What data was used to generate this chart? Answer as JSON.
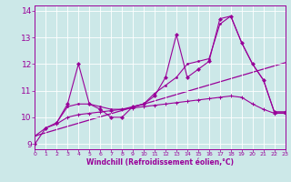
{
  "xlabel": "Windchill (Refroidissement éolien,°C)",
  "bg_color": "#cce8e8",
  "grid_color": "#b0d0d0",
  "line_color": "#990099",
  "xlim": [
    0,
    23
  ],
  "ylim": [
    8.8,
    14.2
  ],
  "yticks": [
    9,
    10,
    11,
    12,
    13,
    14
  ],
  "xticks": [
    0,
    1,
    2,
    3,
    4,
    5,
    6,
    7,
    8,
    9,
    10,
    11,
    12,
    13,
    14,
    15,
    16,
    17,
    18,
    19,
    20,
    21,
    22,
    23
  ],
  "curve1_x": [
    0,
    1,
    2,
    3,
    4,
    5,
    6,
    7,
    8,
    9,
    10,
    11,
    12,
    13,
    14,
    15,
    16,
    17,
    18,
    19,
    20,
    21,
    22,
    23
  ],
  "curve1_y": [
    9.0,
    9.6,
    9.8,
    10.5,
    12.0,
    10.5,
    10.3,
    10.0,
    10.0,
    10.4,
    10.5,
    10.8,
    11.5,
    13.1,
    11.5,
    11.8,
    12.1,
    13.7,
    13.8,
    12.8,
    12.0,
    11.4,
    10.2,
    10.2
  ],
  "curve2_x": [
    2,
    3,
    4,
    5,
    6,
    7,
    8,
    9,
    10,
    11,
    12,
    13,
    14,
    15,
    16,
    17,
    18,
    19,
    20,
    21,
    22,
    23
  ],
  "curve2_y": [
    9.8,
    10.4,
    10.5,
    10.5,
    10.4,
    10.3,
    10.3,
    10.4,
    10.5,
    10.9,
    11.2,
    11.5,
    12.0,
    12.1,
    12.2,
    13.5,
    13.8,
    12.8,
    12.0,
    11.4,
    10.2,
    10.2
  ],
  "curve3_x": [
    0,
    1,
    2,
    3,
    4,
    5,
    6,
    7,
    8,
    9,
    10,
    11,
    12,
    13,
    14,
    15,
    16,
    17,
    18,
    19,
    20,
    21,
    22,
    23
  ],
  "curve3_y": [
    9.3,
    9.6,
    9.75,
    10.0,
    10.1,
    10.15,
    10.2,
    10.25,
    10.3,
    10.35,
    10.4,
    10.45,
    10.5,
    10.55,
    10.6,
    10.65,
    10.7,
    10.75,
    10.8,
    10.75,
    10.5,
    10.3,
    10.15,
    10.15
  ],
  "trend_x": [
    0,
    23
  ],
  "trend_y": [
    9.3,
    12.05
  ]
}
